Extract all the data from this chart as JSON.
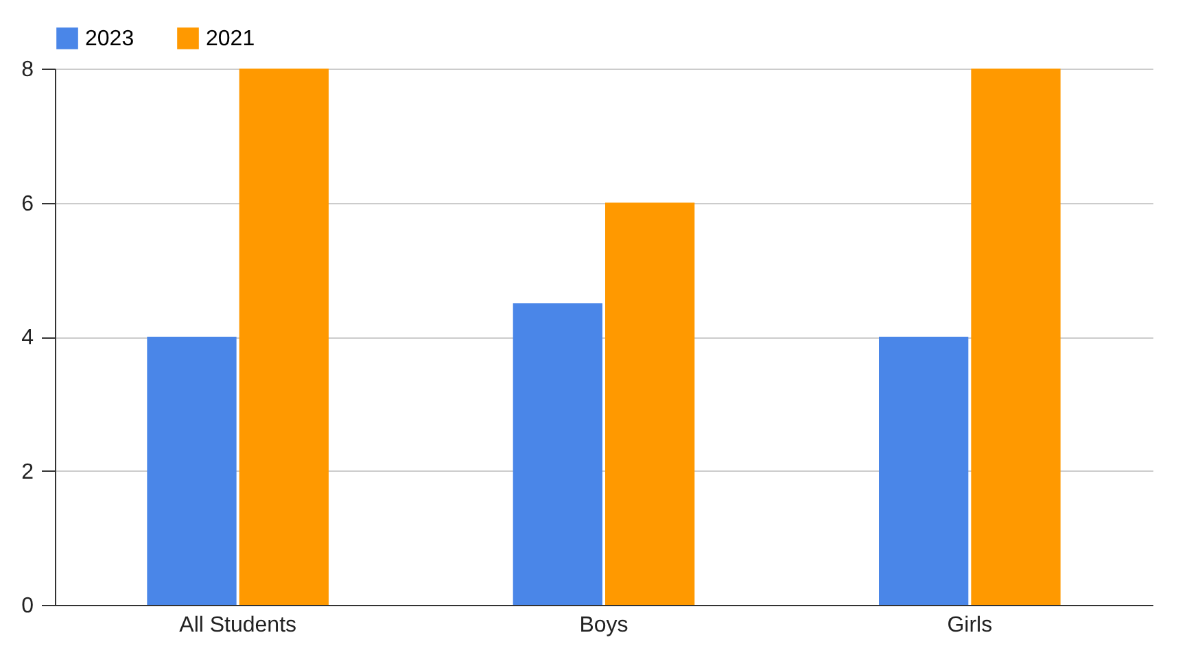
{
  "chart_data": {
    "type": "bar",
    "categories": [
      "All Students",
      "Boys",
      "Girls"
    ],
    "series": [
      {
        "name": "2023",
        "color": "#4a86e8",
        "values": [
          4,
          4.5,
          4
        ]
      },
      {
        "name": "2021",
        "color": "#ff9900",
        "values": [
          8,
          6,
          8
        ]
      }
    ],
    "ylim": [
      0,
      8
    ],
    "yticks": [
      0,
      2,
      4,
      6,
      8
    ],
    "grid": "y",
    "legend": "top"
  }
}
